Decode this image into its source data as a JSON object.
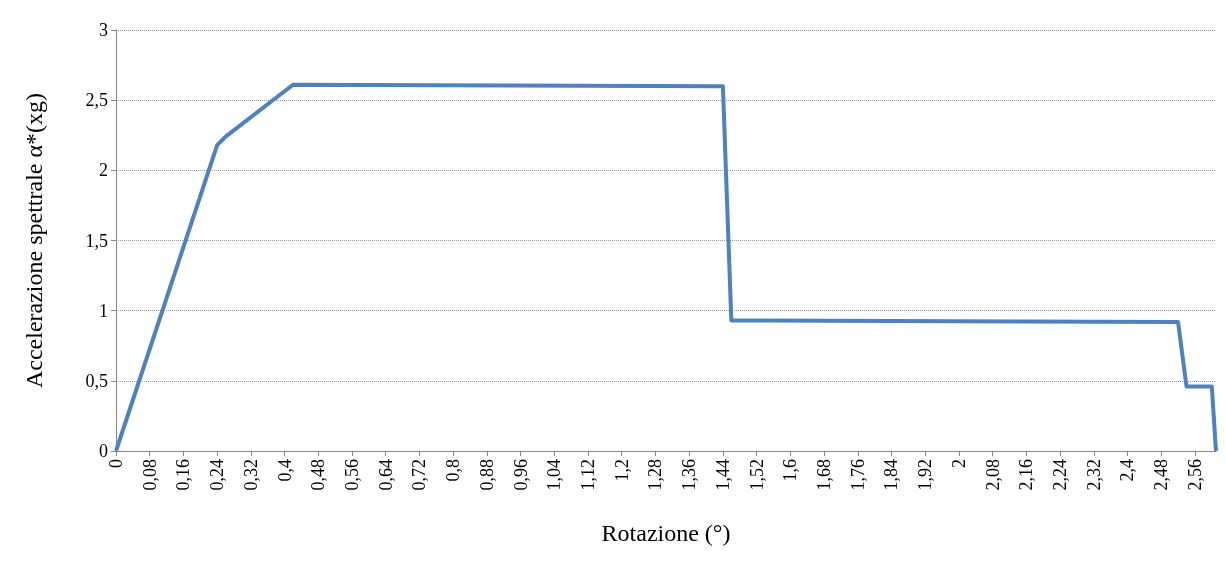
{
  "chart_data": {
    "type": "line",
    "xlabel": "Rotazione (°)",
    "ylabel": "Accelerazione spettrale α*(xg)",
    "series": [
      {
        "color": "#4f81bd",
        "x": [
          0,
          0.24,
          0.26,
          0.42,
          1.44,
          1.46,
          2.52,
          2.54,
          2.6,
          2.61
        ],
        "values": [
          0,
          2.18,
          2.24,
          2.61,
          2.6,
          0.93,
          0.92,
          0.46,
          0.46,
          0
        ]
      }
    ],
    "xlim": [
      0,
      2.61
    ],
    "xticks": [
      0,
      {
        "value": 0.08,
        "label": "0,08"
      },
      {
        "value": 0.16,
        "label": "0,16"
      },
      {
        "value": 0.24,
        "label": "0,24"
      },
      {
        "value": 0.32,
        "label": "0,32"
      },
      {
        "value": 0.4,
        "label": "0,4"
      },
      {
        "value": 0.48,
        "label": "0,48"
      },
      {
        "value": 0.56,
        "label": "0,56"
      },
      {
        "value": 0.64,
        "label": "0,64"
      },
      {
        "value": 0.72,
        "label": "0,72"
      },
      {
        "value": 0.8,
        "label": "0,8"
      },
      {
        "value": 0.88,
        "label": "0,88"
      },
      {
        "value": 0.96,
        "label": "0,96"
      },
      {
        "value": 1.04,
        "label": "1,04"
      },
      {
        "value": 1.12,
        "label": "1,12"
      },
      {
        "value": 1.2,
        "label": "1,2"
      },
      {
        "value": 1.28,
        "label": "1,28"
      },
      {
        "value": 1.36,
        "label": "1,36"
      },
      {
        "value": 1.44,
        "label": "1,44"
      },
      {
        "value": 1.52,
        "label": "1,52"
      },
      {
        "value": 1.6,
        "label": "1,6"
      },
      {
        "value": 1.68,
        "label": "1,68"
      },
      {
        "value": 1.76,
        "label": "1,76"
      },
      {
        "value": 1.84,
        "label": "1,84"
      },
      {
        "value": 1.92,
        "label": "1,92"
      },
      2,
      {
        "value": 2.08,
        "label": "2,08"
      },
      {
        "value": 2.16,
        "label": "2,16"
      },
      {
        "value": 2.24,
        "label": "2,24"
      },
      {
        "value": 2.32,
        "label": "2,32"
      },
      {
        "value": 2.4,
        "label": "2,4"
      },
      {
        "value": 2.48,
        "label": "2,48"
      },
      {
        "value": 2.56,
        "label": "2,56"
      }
    ],
    "ylim": [
      0,
      3
    ],
    "yticks": [
      0,
      {
        "value": 0.5,
        "label": "0,5"
      },
      1,
      {
        "value": 1.5,
        "label": "1,5"
      },
      2,
      {
        "value": 2.5,
        "label": "2,5"
      },
      3
    ],
    "grid": "y",
    "marker": "none",
    "line_style": "solid"
  }
}
